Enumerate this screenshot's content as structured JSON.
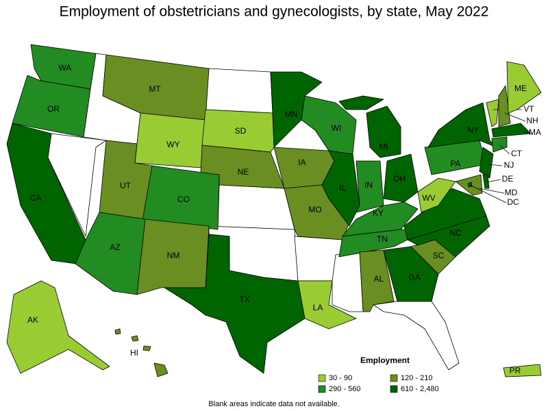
{
  "title": "Employment of obstetricians and gynecologists, by state, May 2022",
  "legend": {
    "title": "Employment",
    "items": [
      {
        "label": "30 - 90",
        "color": "#99cc33"
      },
      {
        "label": "120 - 210",
        "color": "#6b8e23"
      },
      {
        "label": "290 - 560",
        "color": "#228b22"
      },
      {
        "label": "610 - 2,480",
        "color": "#006400"
      }
    ]
  },
  "states": [
    {
      "abbr": "WA",
      "color": "#228b22"
    },
    {
      "abbr": "OR",
      "color": "#228b22"
    },
    {
      "abbr": "CA",
      "color": "#006400"
    },
    {
      "abbr": "MT",
      "color": "#6b8e23"
    },
    {
      "abbr": "WY",
      "color": "#99cc33"
    },
    {
      "abbr": "SD",
      "color": "#99cc33"
    },
    {
      "abbr": "NE",
      "color": "#6b8e23"
    },
    {
      "abbr": "UT",
      "color": "#6b8e23"
    },
    {
      "abbr": "CO",
      "color": "#228b22"
    },
    {
      "abbr": "AZ",
      "color": "#228b22"
    },
    {
      "abbr": "NM",
      "color": "#6b8e23"
    },
    {
      "abbr": "TX",
      "color": "#006400"
    },
    {
      "abbr": "MN",
      "color": "#006400"
    },
    {
      "abbr": "IA",
      "color": "#6b8e23"
    },
    {
      "abbr": "WI",
      "color": "#228b22"
    },
    {
      "abbr": "MO",
      "color": "#6b8e23"
    },
    {
      "abbr": "IL",
      "color": "#006400"
    },
    {
      "abbr": "IN",
      "color": "#228b22"
    },
    {
      "abbr": "MI",
      "color": "#006400"
    },
    {
      "abbr": "OH",
      "color": "#006400"
    },
    {
      "abbr": "KY",
      "color": "#228b22"
    },
    {
      "abbr": "TN",
      "color": "#228b22"
    },
    {
      "abbr": "LA",
      "color": "#99cc33"
    },
    {
      "abbr": "AL",
      "color": "#6b8e23"
    },
    {
      "abbr": "GA",
      "color": "#006400"
    },
    {
      "abbr": "SC",
      "color": "#6b8e23"
    },
    {
      "abbr": "NC",
      "color": "#006400"
    },
    {
      "abbr": null,
      "color": "#006400"
    },
    {
      "abbr": "WV",
      "color": "#99cc33"
    },
    {
      "abbr": "PA",
      "color": "#228b22"
    },
    {
      "abbr": "NY",
      "color": "#006400"
    },
    {
      "abbr": "VT",
      "color": "#99cc33"
    },
    {
      "abbr": "NH",
      "color": "#6b8e23"
    },
    {
      "abbr": "ME",
      "color": "#99cc33"
    },
    {
      "abbr": "MA",
      "color": "#006400"
    },
    {
      "abbr": "CT",
      "color": "#228b22"
    },
    {
      "abbr": "NJ",
      "color": "#006400"
    },
    {
      "abbr": "MD",
      "color": "#6b8e23"
    },
    {
      "abbr": "DE",
      "color": "#006400"
    },
    {
      "abbr": "DC",
      "color": "#006400"
    },
    {
      "abbr": "AK",
      "color": "#99cc33"
    },
    {
      "abbr": "HI",
      "color": "#6b8e23"
    },
    {
      "abbr": "PR",
      "color": "#99cc33"
    }
  ],
  "note": "Blank areas indicate data not available."
}
